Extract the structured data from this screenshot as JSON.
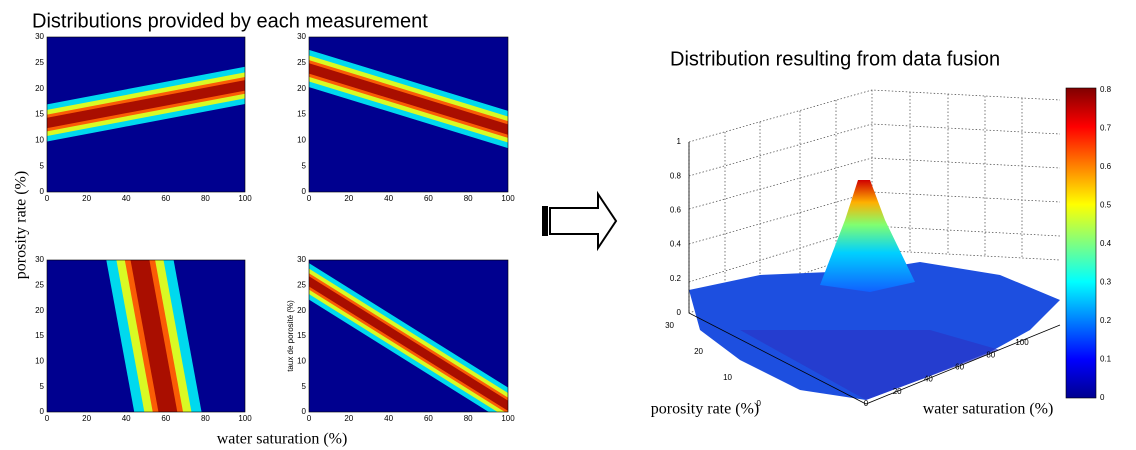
{
  "left": {
    "title": "Distributions provided by each measurement",
    "ylabel": "porosity rate (%)",
    "xlabel": "water saturation (%)",
    "panels": [
      {
        "xticks": [
          0,
          20,
          40,
          60,
          80,
          100
        ],
        "yticks": [
          0,
          5,
          10,
          15,
          20,
          25,
          30
        ]
      },
      {
        "xticks": [
          0,
          20,
          40,
          60,
          80,
          100
        ],
        "yticks": [
          0,
          5,
          10,
          15,
          20,
          25,
          30
        ]
      },
      {
        "xticks": [
          0,
          20,
          40,
          60,
          80,
          100
        ],
        "yticks": [
          0,
          5,
          10,
          15,
          20,
          25,
          30
        ]
      },
      {
        "xticks": [
          0,
          20,
          40,
          60,
          80,
          100
        ],
        "yticks": [
          0,
          5,
          10,
          15,
          20,
          25,
          30
        ],
        "ylabel": "taux de porosité (%)"
      }
    ]
  },
  "right": {
    "title": "Distribution resulting from data fusion",
    "ylabel": "porosity rate (%)",
    "xlabel": "water saturation (%)",
    "zticks": [
      0,
      0.2,
      0.4,
      0.6,
      0.8,
      1
    ],
    "yticks": [
      0,
      10,
      20,
      30
    ],
    "xticks": [
      0,
      20,
      40,
      60,
      80,
      100
    ],
    "colorbar_ticks": [
      0,
      0.1,
      0.2,
      0.3,
      0.4,
      0.5,
      0.6,
      0.7,
      0.8
    ]
  }
}
